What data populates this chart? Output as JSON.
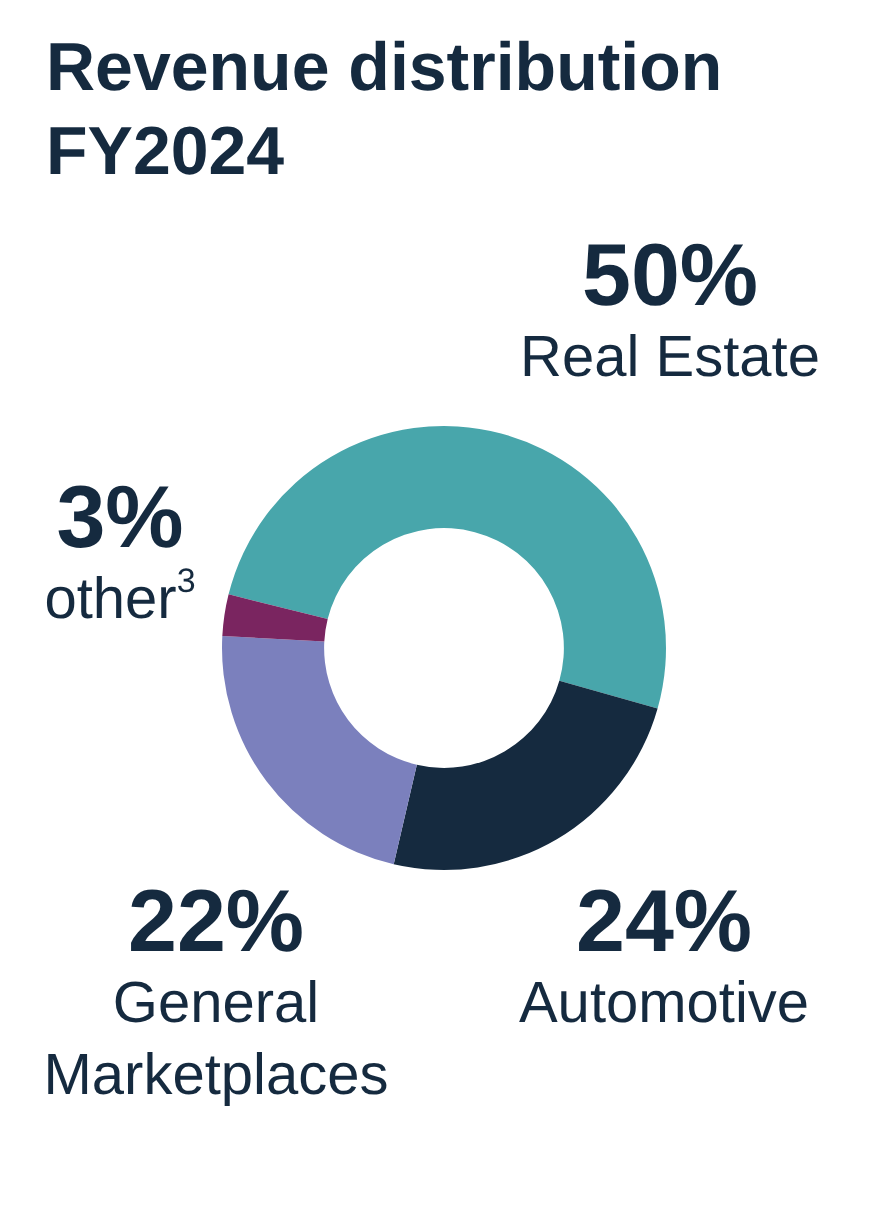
{
  "chart_data": {
    "type": "donut",
    "title": "Revenue distribution FY2024",
    "categories": [
      "Real Estate",
      "Automotive",
      "General Marketplaces",
      "other$^{3}$"
    ],
    "values": [
      50,
      24,
      22,
      3
    ],
    "value_labels": [
      "50%",
      "24%",
      "22%",
      "3%"
    ],
    "colors": [
      "#48a6ab",
      "#152a3f",
      "#7b80bd",
      "#7a2560"
    ],
    "legend": false
  }
}
